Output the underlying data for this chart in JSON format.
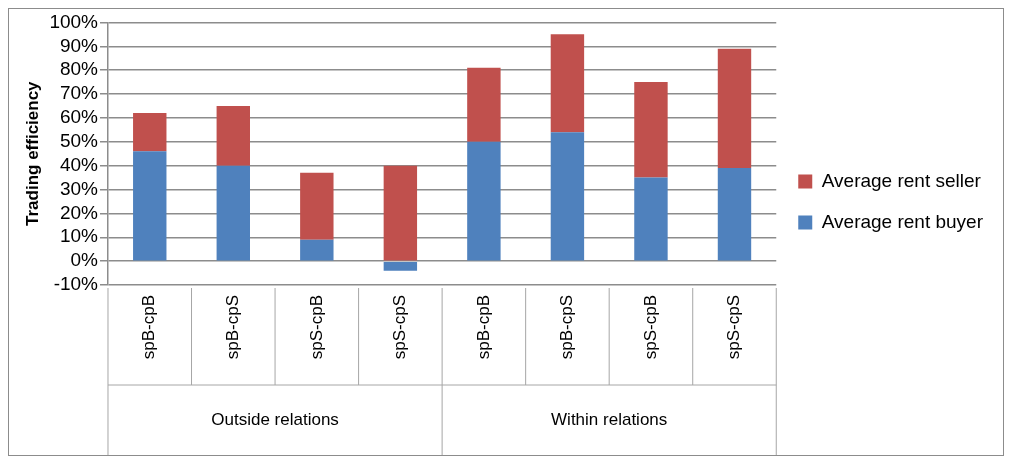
{
  "chart_data": {
    "type": "bar",
    "stacked": true,
    "ylabel": "Trading efficiency",
    "categories": [
      "spB-cpB",
      "spB-cpS",
      "spS-cpB",
      "spS-cpS",
      "spB-cpB",
      "spB-cpS",
      "spS-cpB",
      "spS-cpS"
    ],
    "series": [
      {
        "name": "Average rent buyer",
        "color": "#4f81bd",
        "values": [
          46,
          40,
          9,
          -4,
          50,
          54,
          35,
          39
        ]
      },
      {
        "name": "Average rent seller",
        "color": "#c0504d",
        "values": [
          16,
          25,
          28,
          40,
          31,
          41,
          40,
          50
        ]
      }
    ],
    "ylim": [
      -10,
      100
    ],
    "yticks": [
      {
        "value": -10,
        "label": "-10%"
      },
      {
        "value": 0,
        "label": "0%"
      },
      {
        "value": 10,
        "label": "10%"
      },
      {
        "value": 20,
        "label": "20%"
      },
      {
        "value": 30,
        "label": "30%"
      },
      {
        "value": 40,
        "label": "40%"
      },
      {
        "value": 50,
        "label": "50%"
      },
      {
        "value": 60,
        "label": "60%"
      },
      {
        "value": 70,
        "label": "70%"
      },
      {
        "value": 80,
        "label": "80%"
      },
      {
        "value": 90,
        "label": "90%"
      },
      {
        "value": 100,
        "label": "100%"
      }
    ],
    "grid": "y",
    "legend": "right",
    "annotations": [
      "Outside relations",
      "Within relations"
    ]
  }
}
